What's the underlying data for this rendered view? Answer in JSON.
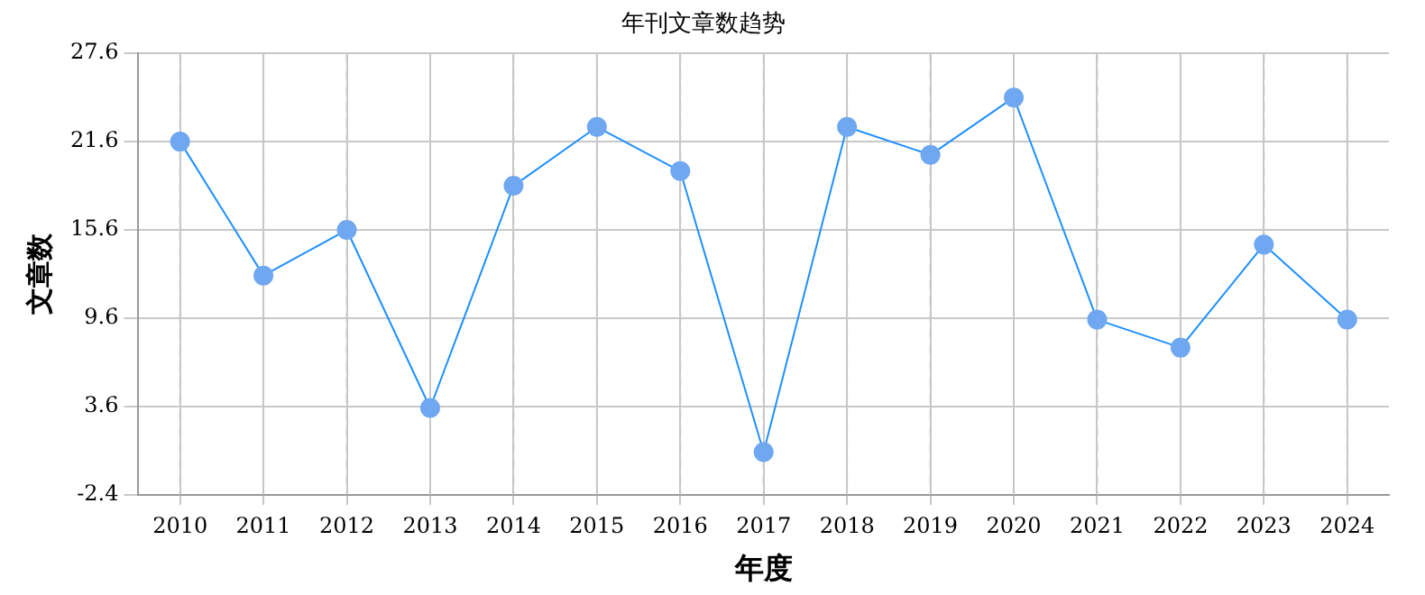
{
  "chart_data": {
    "type": "line",
    "title": "年刊文章数趋势",
    "xlabel": "年度",
    "ylabel": "文章数",
    "categories": [
      "2010",
      "2011",
      "2012",
      "2013",
      "2014",
      "2015",
      "2016",
      "2017",
      "2018",
      "2019",
      "2020",
      "2021",
      "2022",
      "2023",
      "2024"
    ],
    "series": [
      {
        "color": "#1e90ff",
        "values": [
          21.6,
          12.5,
          15.6,
          3.5,
          18.6,
          22.6,
          19.6,
          0.5,
          22.6,
          20.7,
          24.6,
          9.5,
          7.6,
          14.6,
          9.5
        ]
      }
    ],
    "ylim": [
      -2.4,
      27.6
    ],
    "yticks": [
      -2.4,
      3.6,
      9.6,
      15.6,
      21.6,
      27.6
    ],
    "grid": true,
    "legend": false,
    "marker": "circle",
    "line_style": "solid"
  }
}
